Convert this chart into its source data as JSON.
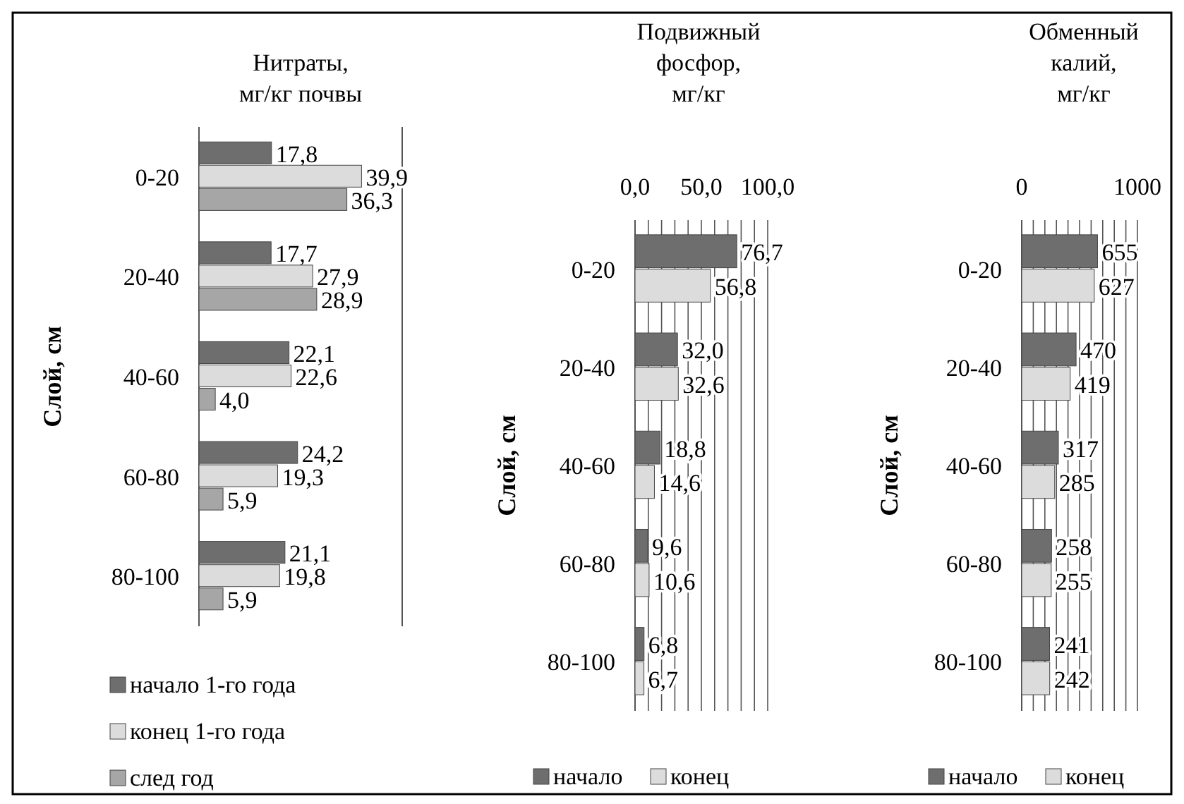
{
  "chart_data": [
    {
      "type": "bar",
      "orientation": "horizontal",
      "title": "Нитраты, мг/кг почвы",
      "ylabel": "Слой, см",
      "categories": [
        "0-20",
        "20-40",
        "40-60",
        "60-80",
        "80-100"
      ],
      "legend": "bottom",
      "series": [
        {
          "name": "начало 1-го года",
          "color": "#6e6e6e",
          "values": [
            17.8,
            17.7,
            22.1,
            24.2,
            21.1
          ],
          "value_labels": [
            "17,8",
            "17,7",
            "22,1",
            "24,2",
            "21,1"
          ]
        },
        {
          "name": "конец 1-го года",
          "color": "#dcdcdc",
          "values": [
            39.9,
            27.9,
            22.6,
            19.3,
            19.8
          ],
          "value_labels": [
            "39,9",
            "27,9",
            "22,6",
            "19,3",
            "19,8"
          ]
        },
        {
          "name": "след год",
          "color": "#a6a6a6",
          "values": [
            36.3,
            28.9,
            4.0,
            5.9,
            5.9
          ],
          "value_labels": [
            "36,3",
            "28,9",
            "4,0",
            "5,9",
            "5,9"
          ]
        }
      ]
    },
    {
      "type": "bar",
      "orientation": "horizontal",
      "title": "Подвижный фосфор, мг/кг",
      "ylabel": "Слой, см",
      "categories": [
        "0-20",
        "20-40",
        "40-60",
        "60-80",
        "80-100"
      ],
      "xlim": [
        0,
        100
      ],
      "xticks": [
        {
          "value": 0,
          "label": "0,0"
        },
        {
          "value": 10,
          "label": null
        },
        {
          "value": 20,
          "label": null
        },
        {
          "value": 30,
          "label": null
        },
        {
          "value": 40,
          "label": null
        },
        {
          "value": 50,
          "label": "50,0"
        },
        {
          "value": 60,
          "label": null
        },
        {
          "value": 70,
          "label": null
        },
        {
          "value": 80,
          "label": null
        },
        {
          "value": 90,
          "label": null
        },
        {
          "value": 100,
          "label": "100,0"
        }
      ],
      "grid": "x",
      "legend": "bottom",
      "series": [
        {
          "name": "начало",
          "color": "#6e6e6e",
          "values": [
            76.7,
            32.0,
            18.8,
            9.6,
            6.8
          ],
          "value_labels": [
            "76,7",
            "32,0",
            "18,8",
            "9,6",
            "6,8"
          ]
        },
        {
          "name": "конец",
          "color": "#dcdcdc",
          "values": [
            56.8,
            32.6,
            14.6,
            10.6,
            6.7
          ],
          "value_labels": [
            "56,8",
            "32,6",
            "14,6",
            "10,6",
            "6,7"
          ]
        }
      ]
    },
    {
      "type": "bar",
      "orientation": "horizontal",
      "title": "Обменный калий, мг/кг",
      "ylabel": "Слой, см",
      "categories": [
        "0-20",
        "20-40",
        "40-60",
        "60-80",
        "80-100"
      ],
      "xlim": [
        0,
        1000
      ],
      "xticks": [
        0,
        {
          "value": 100,
          "label": null
        },
        {
          "value": 200,
          "label": null
        },
        {
          "value": 300,
          "label": null
        },
        {
          "value": 400,
          "label": null
        },
        {
          "value": 500,
          "label": null
        },
        {
          "value": 600,
          "label": null
        },
        {
          "value": 700,
          "label": null
        },
        {
          "value": 800,
          "label": null
        },
        {
          "value": 900,
          "label": null
        },
        1000
      ],
      "grid": "x",
      "data_labels": true,
      "legend": "bottom",
      "series": [
        {
          "name": "начало",
          "color": "#6e6e6e",
          "values": [
            655,
            470,
            317,
            258,
            241
          ]
        },
        {
          "name": "конец",
          "color": "#dcdcdc",
          "values": [
            627,
            419,
            285,
            255,
            242
          ]
        }
      ]
    }
  ]
}
